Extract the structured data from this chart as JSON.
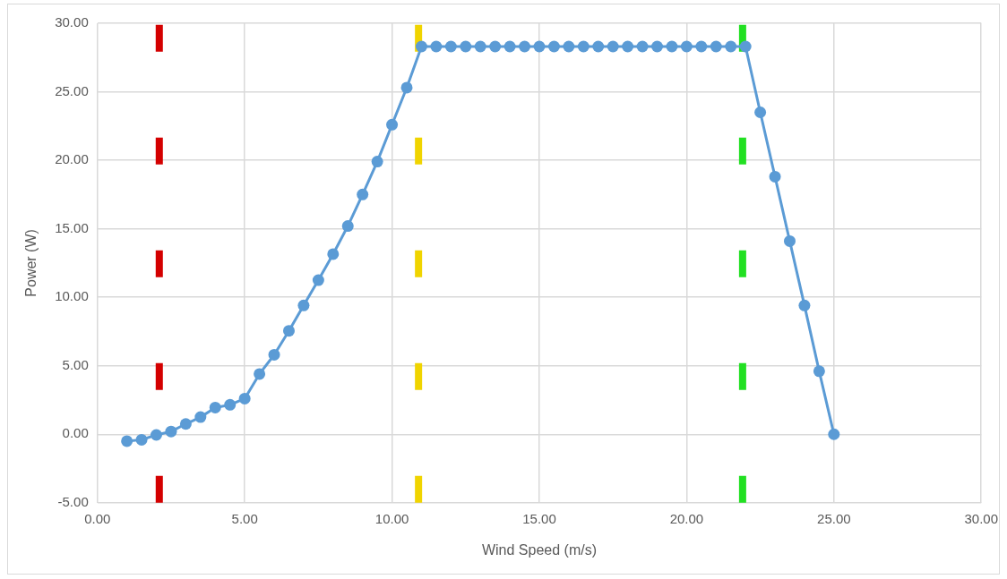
{
  "chart_data": {
    "type": "line",
    "xlabel": "Wind Speed (m/s)",
    "ylabel": "Power (W)",
    "x": [
      1,
      1.5,
      2,
      2.5,
      3,
      3.5,
      4,
      4.5,
      5,
      5.5,
      6,
      6.5,
      7,
      7.5,
      8,
      8.5,
      9,
      9.5,
      10,
      10.5,
      11,
      11.5,
      12,
      12.5,
      13,
      13.5,
      14,
      14.5,
      15,
      15.5,
      16,
      16.5,
      17,
      17.5,
      18,
      18.5,
      19,
      19.5,
      20,
      20.5,
      21,
      21.5,
      22,
      22.5,
      23,
      23.5,
      24,
      24.5,
      25
    ],
    "series": [
      {
        "color": "#5b9bd5",
        "values": [
          -0.5,
          -0.4,
          -0.05,
          0.2,
          0.75,
          1.25,
          1.95,
          2.15,
          2.6,
          4.4,
          5.8,
          7.55,
          9.4,
          11.25,
          13.15,
          15.2,
          17.5,
          19.9,
          22.6,
          25.3,
          28.3,
          28.3,
          28.3,
          28.3,
          28.3,
          28.3,
          28.3,
          28.3,
          28.3,
          28.3,
          28.3,
          28.3,
          28.3,
          28.3,
          28.3,
          28.3,
          28.3,
          28.3,
          28.3,
          28.3,
          28.3,
          28.3,
          28.3,
          23.5,
          18.8,
          14.1,
          9.4,
          4.6,
          0
        ]
      }
    ],
    "xlim": [
      0,
      30
    ],
    "ylim": [
      -5,
      30
    ],
    "xticks": [
      {
        "value": 0,
        "label": "0.00"
      },
      {
        "value": 5,
        "label": "5.00"
      },
      {
        "value": 10,
        "label": "10.00"
      },
      {
        "value": 15,
        "label": "15.00"
      },
      {
        "value": 20,
        "label": "20.00"
      },
      {
        "value": 25,
        "label": "25.00"
      },
      {
        "value": 30,
        "label": "30.00"
      }
    ],
    "yticks": [
      {
        "value": -5,
        "label": "-5.00"
      },
      {
        "value": 0,
        "label": "0.00"
      },
      {
        "value": 5,
        "label": "5.00"
      },
      {
        "value": 10,
        "label": "10.00"
      },
      {
        "value": 15,
        "label": "15.00"
      },
      {
        "value": 20,
        "label": "20.00"
      },
      {
        "value": 25,
        "label": "25.00"
      },
      {
        "value": 30,
        "label": "30.00"
      }
    ],
    "grid": true,
    "legend": false,
    "marker": "circle",
    "line_style": "solid",
    "ref_lines": [
      {
        "axis": "x",
        "value": 2.1,
        "color": "#d40000",
        "line_style": "dashed"
      },
      {
        "axis": "x",
        "value": 10.9,
        "color": "#f0d400",
        "line_style": "dashed"
      },
      {
        "axis": "x",
        "value": 21.9,
        "color": "#22e022",
        "line_style": "dashed"
      }
    ]
  }
}
